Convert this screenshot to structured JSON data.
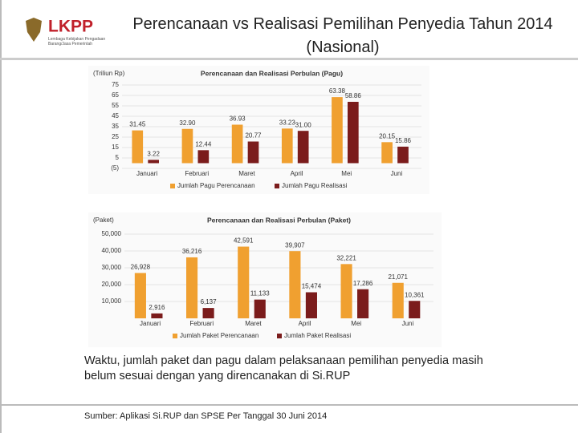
{
  "header": {
    "logo_text": "LKPP",
    "logo_subtitle": "Lembaga Kebijakan Pengadaan Barang/Jasa Pemerintah",
    "title": "Perencanaan vs Realisasi Pemilihan Penyedia Tahun 2014 (Nasional)"
  },
  "chart_data": [
    {
      "type": "bar",
      "title": "Perencanaan dan Realisasi Perbulan (Pagu)",
      "y_label": "(Triliun Rp)",
      "categories": [
        "Januari",
        "Februari",
        "Maret",
        "April",
        "Mei",
        "Juni"
      ],
      "series": [
        {
          "name": "Jumlah Pagu Perencanaan",
          "color": "#f0a030",
          "values": [
            31.45,
            32.9,
            36.93,
            33.23,
            63.38,
            20.15
          ],
          "value_labels": [
            "31.45",
            "32.90",
            "36.93",
            "33.23",
            "63.38",
            "20.15"
          ]
        },
        {
          "name": "Jumlah Pagu Realisasi",
          "color": "#7b1c1c",
          "values": [
            3.22,
            12.44,
            20.77,
            31.0,
            58.86,
            15.86
          ],
          "value_labels": [
            "3.22",
            "12.44",
            "20.77",
            "31.00",
            "58.86",
            "15.86"
          ]
        }
      ],
      "ylim": [
        -5,
        75
      ],
      "yticks": [
        75,
        65,
        55,
        45,
        35,
        25,
        15,
        5,
        {
          "value": -5,
          "label": "(5)"
        }
      ],
      "grid": true,
      "legend": "bottom"
    },
    {
      "type": "bar",
      "title": "Perencanaan dan Realisasi Perbulan (Paket)",
      "y_label": "(Paket)",
      "categories": [
        "Januari",
        "Februari",
        "Maret",
        "April",
        "Mei",
        "Juni"
      ],
      "series": [
        {
          "name": "Jumlah Paket Perencanaan",
          "color": "#f0a030",
          "values": [
            26928,
            36216,
            42591,
            39907,
            32221,
            21071
          ],
          "value_labels": [
            "26,928",
            "36,216",
            "42,591",
            "39,907",
            "32,221",
            "21,071"
          ]
        },
        {
          "name": "Jumlah Paket Realisasi",
          "color": "#7b1c1c",
          "values": [
            2916,
            6137,
            11133,
            15474,
            17286,
            10361
          ],
          "value_labels": [
            "2,916",
            "6,137",
            "11,133",
            "15,474",
            "17,286",
            "10,361"
          ]
        }
      ],
      "ylim": [
        0,
        50000
      ],
      "yticks": [
        {
          "value": 50000,
          "label": "50,000"
        },
        {
          "value": 40000,
          "label": "40,000"
        },
        {
          "value": 30000,
          "label": "30,000"
        },
        {
          "value": 20000,
          "label": "20,000"
        },
        {
          "value": 10000,
          "label": "10,000"
        }
      ],
      "grid": true,
      "legend": "bottom"
    }
  ],
  "body": {
    "text": "Waktu, jumlah paket dan pagu dalam pelaksanaan pemilihan penyedia masih belum sesuai dengan yang direncanakan di Si.RUP",
    "source": "Sumber: Aplikasi Si.RUP dan SPSE Per Tanggal 30 Juni 2014"
  }
}
